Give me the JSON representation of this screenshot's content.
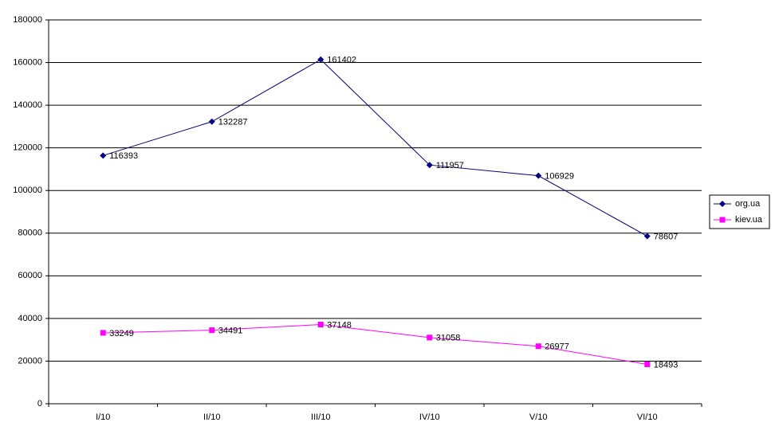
{
  "chart_data": {
    "type": "line",
    "categories": [
      "I/10",
      "II/10",
      "III/10",
      "IV/10",
      "V/10",
      "VI/10"
    ],
    "series": [
      {
        "name": "org.ua",
        "color": "#000080",
        "marker": "diamond",
        "values": [
          116393,
          132287,
          161402,
          111957,
          106929,
          78607
        ]
      },
      {
        "name": "kiev.ua",
        "color": "#ff00ff",
        "marker": "square",
        "values": [
          33249,
          34491,
          37148,
          31058,
          26977,
          18493
        ]
      }
    ],
    "ylim": [
      0,
      180000
    ],
    "yticks": [
      0,
      20000,
      40000,
      60000,
      80000,
      100000,
      120000,
      140000,
      160000,
      180000
    ],
    "grid": true,
    "legend": "right",
    "data_labels": true
  }
}
